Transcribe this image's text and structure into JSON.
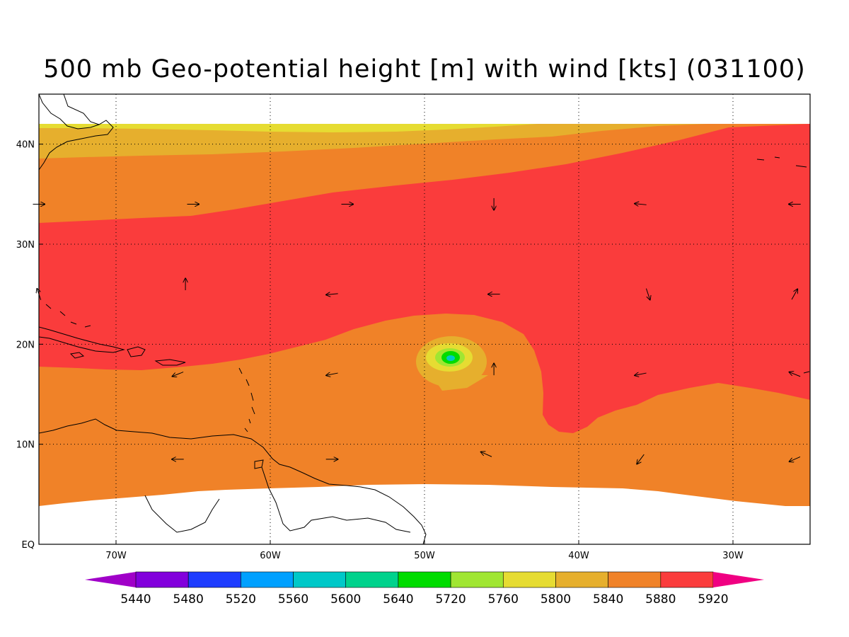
{
  "title": "500 mb Geo-potential height [m] with wind [kts] (031100)",
  "map": {
    "lon_range": [
      -75,
      -25
    ],
    "lat_range": [
      0,
      45
    ],
    "data_lat_range": [
      4,
      42
    ],
    "lon_ticks": [
      {
        "value": -70,
        "label": "70W"
      },
      {
        "value": -60,
        "label": "60W"
      },
      {
        "value": -50,
        "label": "50W"
      },
      {
        "value": -40,
        "label": "40W"
      },
      {
        "value": -30,
        "label": "30W"
      }
    ],
    "lat_ticks": [
      {
        "value": 0,
        "label": "EQ"
      },
      {
        "value": 10,
        "label": "10N"
      },
      {
        "value": 20,
        "label": "20N"
      },
      {
        "value": 30,
        "label": "30N"
      },
      {
        "value": 40,
        "label": "40N"
      }
    ],
    "grid": true,
    "grid_style": "dotted"
  },
  "colorbar": {
    "levels": [
      "5440",
      "5480",
      "5520",
      "5560",
      "5600",
      "5640",
      "5720",
      "5760",
      "5800",
      "5840",
      "5880",
      "5920"
    ],
    "colors": [
      "#a000c8",
      "#8200dc",
      "#1e3cff",
      "#00a0ff",
      "#00c8c8",
      "#00d28c",
      "#00dc00",
      "#a0e632",
      "#e6dc32",
      "#e6af2d",
      "#f08228",
      "#fa3c3c",
      "#f00082"
    ]
  },
  "chart_data": {
    "type": "heatmap",
    "variable": "500 mb Geo-potential height [m]",
    "overlay": "wind [kts]",
    "contour_fills": [
      {
        "range": "5800-5840",
        "color": "#e6dc32",
        "where": "narrow band near 41-42N west of 45W"
      },
      {
        "range": "5840-5880",
        "color": "#e6af2d",
        "where": "north of ~39N west of ~45W"
      },
      {
        "range": "5880-5920",
        "color": "#f08228",
        "where": "belt 31-39N in west, and tropics south of ~18N"
      },
      {
        "range": ">5920",
        "color": "#fa3c3c",
        "where": "subtropical ridge 18-35N, extending south to 11N near 40W"
      },
      {
        "range": "closed low",
        "center_lon": -48.5,
        "center_lat": 18.5,
        "min_range": "5640-5720"
      }
    ],
    "wind_vectors": [
      {
        "lon": -75,
        "lat": 34,
        "u": 1,
        "v": 0
      },
      {
        "lon": -65,
        "lat": 34,
        "u": 1,
        "v": 0
      },
      {
        "lon": -55,
        "lat": 34,
        "u": 1,
        "v": 0
      },
      {
        "lon": -45.5,
        "lat": 34,
        "u": 0,
        "v": -1
      },
      {
        "lon": -36,
        "lat": 34,
        "u": -1,
        "v": 0.1
      },
      {
        "lon": -26,
        "lat": 34,
        "u": -1,
        "v": 0
      },
      {
        "lon": -75,
        "lat": 25,
        "u": -0.3,
        "v": 0.9
      },
      {
        "lon": -65.5,
        "lat": 26,
        "u": 0,
        "v": 1
      },
      {
        "lon": -56,
        "lat": 25,
        "u": -1,
        "v": -0.1
      },
      {
        "lon": -45.5,
        "lat": 25,
        "u": -1,
        "v": 0
      },
      {
        "lon": -35.5,
        "lat": 25,
        "u": 0.3,
        "v": -0.9
      },
      {
        "lon": -26,
        "lat": 25,
        "u": 0.5,
        "v": 0.9
      },
      {
        "lon": -66,
        "lat": 17,
        "u": -1,
        "v": -0.4
      },
      {
        "lon": -56,
        "lat": 17,
        "u": -1,
        "v": -0.2
      },
      {
        "lon": -45.5,
        "lat": 17.5,
        "u": 0,
        "v": 1
      },
      {
        "lon": -36,
        "lat": 17,
        "u": -1,
        "v": -0.2
      },
      {
        "lon": -26,
        "lat": 17,
        "u": -1,
        "v": 0.4
      },
      {
        "lon": -66,
        "lat": 8.5,
        "u": -1,
        "v": 0
      },
      {
        "lon": -56,
        "lat": 8.5,
        "u": 1,
        "v": 0
      },
      {
        "lon": -46,
        "lat": 9,
        "u": -0.9,
        "v": 0.4
      },
      {
        "lon": -36,
        "lat": 8.5,
        "u": -0.6,
        "v": -0.8
      },
      {
        "lon": -26,
        "lat": 8.5,
        "u": -0.9,
        "v": -0.4
      }
    ]
  }
}
